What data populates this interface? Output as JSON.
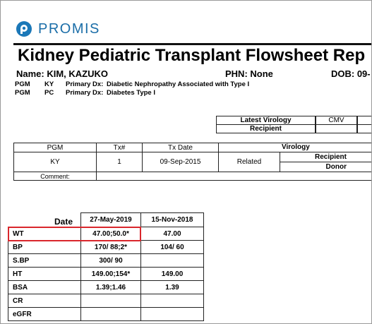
{
  "header": {
    "logo": "PROMIS",
    "title": "Kidney Pediatric Transplant Flowsheet Rep"
  },
  "patient": {
    "name": "Name: KIM, KAZUKO",
    "phn": "PHN: None",
    "dob": "DOB: 09-"
  },
  "diagnoses": [
    [
      "PGM",
      "KY",
      "Primary Dx:",
      "Diabetic Nephropathy Associated with Type I"
    ],
    [
      "PGM",
      "PC",
      "Primary Dx:",
      "Diabetes Type I"
    ]
  ],
  "virology_table": {
    "rows": [
      [
        "Latest Virology",
        "CMV"
      ],
      [
        "Recipient"
      ]
    ]
  },
  "transplant_table": {
    "headers": [
      "PGM",
      "Tx#",
      "Tx Date",
      "Virology"
    ],
    "row": [
      "KY",
      "1",
      "09-Sep-2015",
      "Related"
    ],
    "virology_roles": [
      "Recipient",
      "Donor"
    ],
    "comment": "Comment:"
  },
  "lab_table": {
    "date_label": "Date",
    "dates": [
      "27-May-2019",
      "15-Nov-2018"
    ],
    "rows": [
      {
        "label": "WT",
        "values": [
          "47.00;50.0*",
          "47.00"
        ]
      },
      {
        "label": "BP",
        "values": [
          "170/ 88;2*",
          "104/ 60"
        ]
      },
      {
        "label": "S.BP",
        "values": [
          "300/ 90"
        ]
      },
      {
        "label": "HT",
        "values": [
          "149.00;154*",
          "149.00"
        ]
      },
      {
        "label": "BSA",
        "values": [
          "1.39;1.46",
          "1.39"
        ]
      },
      {
        "label": "CR",
        "values": []
      },
      {
        "label": "eGFR",
        "values": []
      }
    ]
  }
}
